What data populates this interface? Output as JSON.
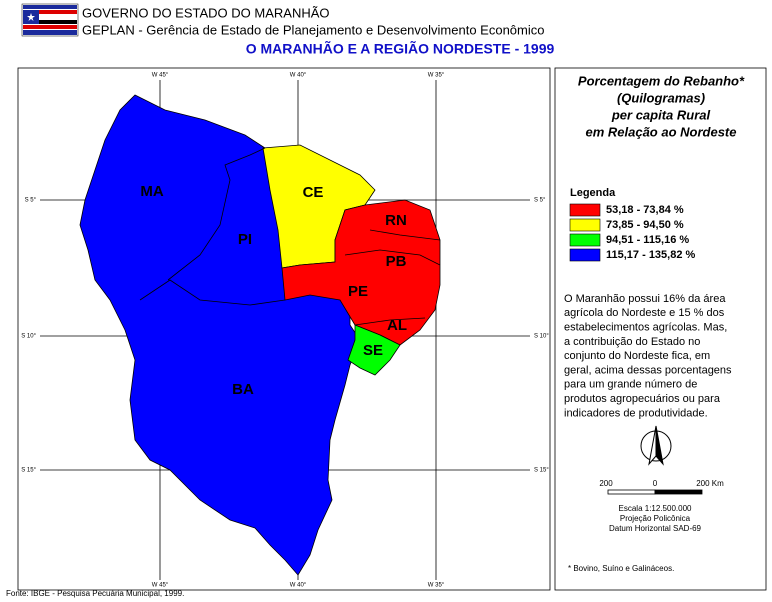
{
  "header": {
    "government": "GOVERNO DO ESTADO DO MARANHÃO",
    "agency": "GEPLAN - Gerência de Estado de Planejamento e Desenvolvimento Econômico",
    "title": "O MARANHÃO E A REGIÃO NORDESTE - 1999"
  },
  "map": {
    "meridians": [
      "W 45°",
      "W 40°",
      "W 35°"
    ],
    "parallels": [
      "S 5°",
      "S 10°",
      "S 15°"
    ],
    "states": [
      "MA",
      "PI",
      "CE",
      "RN",
      "PB",
      "PE",
      "AL",
      "SE",
      "BA"
    ]
  },
  "panel": {
    "title_lines": [
      "Porcentagem do Rebanho*",
      "(Quilogramas)",
      "per capita Rural",
      "em Relação ao Nordeste"
    ],
    "legend_title": "Legenda",
    "legend": [
      {
        "label": "53,18 - 73,84 %",
        "color": "#ff0000"
      },
      {
        "label": "73,85 - 94,50 %",
        "color": "#ffff00"
      },
      {
        "label": "94,51 - 115,16 %",
        "color": "#00ff00"
      },
      {
        "label": "115,17 - 135,82 %",
        "color": "#0000ff"
      }
    ],
    "description_lines": [
      "O Maranhão possui 16% da área",
      "agrícola do Nordeste e 15 % dos",
      "estabelecimentos agrícolas. Mas,",
      "a contribuição do Estado no",
      "conjunto do Nordeste fica, em",
      "geral, acima dessas porcentagens",
      "para um grande número de",
      "produtos agropecuários ou para",
      "indicadores de produtividade."
    ],
    "scale": {
      "labels": [
        "200",
        "0",
        "200 Km"
      ],
      "lines": [
        "Escala 1:12.500.000",
        "Projeção Policônica",
        "Datum Horizontal SAD-69"
      ]
    },
    "footnote": "* Bovino, Suíno e Galináceos."
  },
  "footer": {
    "source": "Fonte: IBGE - Pesquisa Pecuária Municipal, 1999."
  }
}
